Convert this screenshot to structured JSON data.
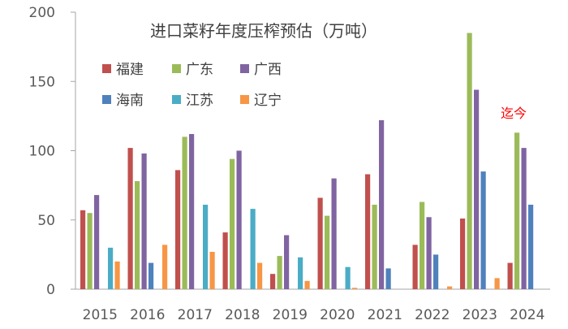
{
  "chart_data": {
    "type": "bar",
    "title": "进口菜籽年度压榨预估（万吨）",
    "annotation": "迄今",
    "categories": [
      "2015",
      "2016",
      "2017",
      "2018",
      "2019",
      "2020",
      "2021",
      "2022",
      "2023",
      "2024"
    ],
    "ylim": [
      0,
      200
    ],
    "yticks": [
      0,
      50,
      100,
      150,
      200
    ],
    "grid": false,
    "legend_position": "top-left inside plot, two rows of three",
    "series": [
      {
        "name": "福建",
        "color": "#c0504d",
        "values": [
          57,
          102,
          86,
          41,
          11,
          66,
          83,
          32,
          51,
          19
        ]
      },
      {
        "name": "广东",
        "color": "#9bbb59",
        "values": [
          55,
          78,
          110,
          94,
          24,
          53,
          61,
          63,
          185,
          113
        ]
      },
      {
        "name": "广西",
        "color": "#8064a2",
        "values": [
          68,
          98,
          112,
          100,
          39,
          80,
          122,
          52,
          144,
          102
        ]
      },
      {
        "name": "海南",
        "color": "#4f81bd",
        "values": [
          0,
          19,
          0,
          0,
          0,
          0,
          15,
          25,
          85,
          61
        ]
      },
      {
        "name": "江苏",
        "color": "#4bacc6",
        "values": [
          30,
          0,
          61,
          58,
          23,
          16,
          0,
          0,
          0,
          0
        ]
      },
      {
        "name": "辽宁",
        "color": "#f79646",
        "values": [
          20,
          32,
          27,
          19,
          6,
          1,
          0,
          2,
          8,
          0
        ]
      }
    ]
  }
}
